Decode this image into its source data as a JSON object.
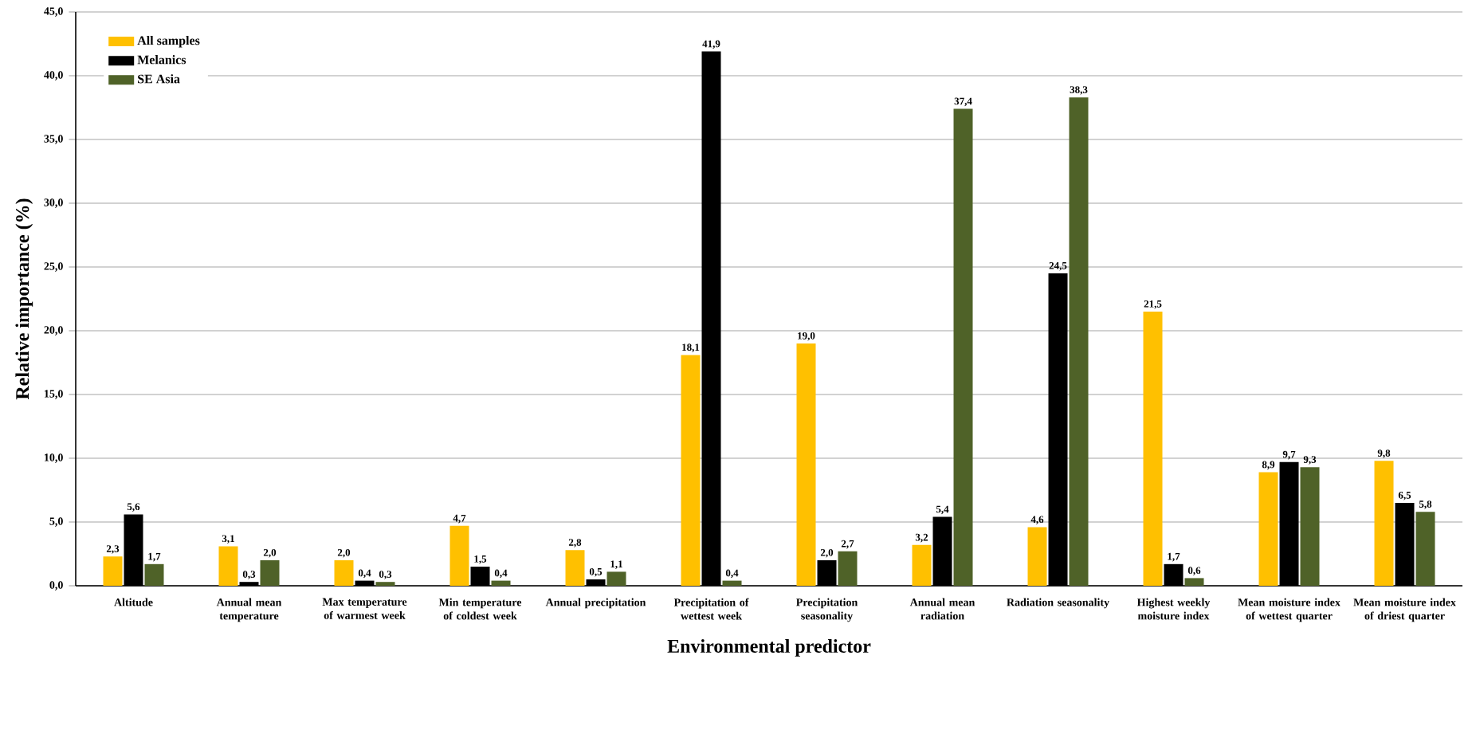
{
  "chart_data": {
    "type": "bar",
    "xlabel": "Environmental predictor",
    "ylabel": "Relative importance (%)",
    "categories": [
      "Altitude",
      "Annual mean temperature",
      "Max temperature of warmest week",
      "Min temperature of coldest week",
      "Annual precipitation",
      "Precipitation of wettest week",
      "Precipitation seasonality",
      "Annual mean radiation",
      "Radiation seasonality",
      "Highest weekly moisture index",
      "Mean moisture index of wettest quarter",
      "Mean moisture index of driest quarter"
    ],
    "series": [
      {
        "name": "All samples",
        "color": "#ffc000",
        "values": [
          2.3,
          3.1,
          2.0,
          4.7,
          2.8,
          18.1,
          19.0,
          3.2,
          4.6,
          21.5,
          8.9,
          9.8
        ],
        "value_labels": [
          "2,3",
          "3,1",
          "2,0",
          "4,7",
          "2,8",
          "18,1",
          "19,0",
          "3,2",
          "4,6",
          "21,5",
          "8,9",
          "9,8"
        ]
      },
      {
        "name": "Melanics",
        "color": "#000000",
        "values": [
          5.6,
          0.3,
          0.4,
          1.5,
          0.5,
          41.9,
          2.0,
          5.4,
          24.5,
          1.7,
          9.7,
          6.5
        ],
        "value_labels": [
          "5,6",
          "0,3",
          "0,4",
          "1,5",
          "0,5",
          "41,9",
          "2,0",
          "5,4",
          "24,5",
          "1,7",
          "9,7",
          "6,5"
        ]
      },
      {
        "name": "SE Asia",
        "color": "#4f6228",
        "values": [
          1.7,
          2.0,
          0.3,
          0.4,
          1.1,
          0.4,
          2.7,
          37.4,
          38.3,
          0.6,
          9.3,
          5.8
        ],
        "value_labels": [
          "1,7",
          "2,0",
          "0,3",
          "0,4",
          "1,1",
          "0,4",
          "2,7",
          "37,4",
          "38,3",
          "0,6",
          "9,3",
          "5,8"
        ]
      }
    ],
    "ylim": [
      0,
      45
    ],
    "yticks": [
      {
        "value": 0,
        "label": "0,0"
      },
      {
        "value": 5,
        "label": "5,0"
      },
      {
        "value": 10,
        "label": "10,0"
      },
      {
        "value": 15,
        "label": "15,0"
      },
      {
        "value": 20,
        "label": "20,0"
      },
      {
        "value": 25,
        "label": "25,0"
      },
      {
        "value": 30,
        "label": "30,0"
      },
      {
        "value": 35,
        "label": "35,0"
      },
      {
        "value": 40,
        "label": "40,0"
      },
      {
        "value": 45,
        "label": "45,0"
      }
    ],
    "grid": "y",
    "legend": "top left"
  }
}
